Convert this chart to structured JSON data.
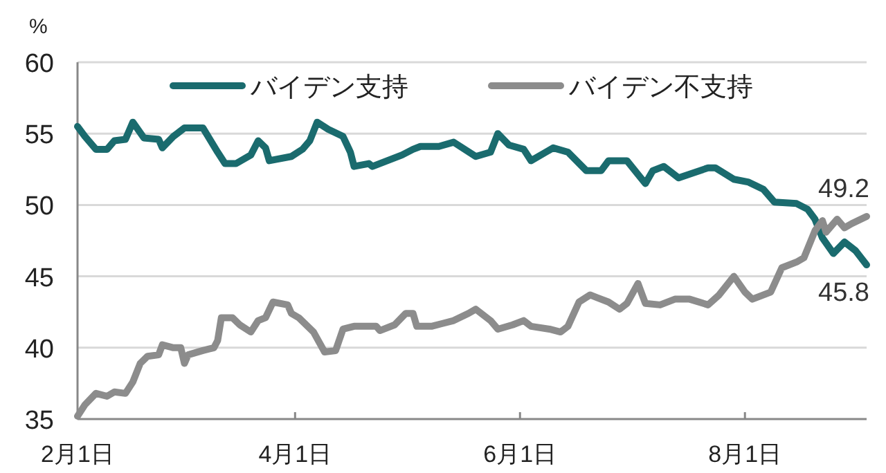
{
  "chart_data": {
    "type": "line",
    "ylabel": "%",
    "xlim": [
      "--02-01",
      "--09-03"
    ],
    "ylim": [
      35,
      60
    ],
    "xticks": [
      {
        "value": "--02-01",
        "label": "2月1日"
      },
      {
        "value": "--04-01",
        "label": "4月1日"
      },
      {
        "value": "--06-01",
        "label": "6月1日"
      },
      {
        "value": "--08-01",
        "label": "8月1日"
      }
    ],
    "yticks": [
      35,
      40,
      45,
      50,
      55,
      60
    ],
    "grid": "y",
    "legend": "top",
    "line_style": "solid",
    "marker": "none",
    "series": [
      {
        "name": "バイデン支持",
        "color": "#1a6b6e",
        "x": [
          "--02-01",
          "--02-03",
          "--02-06",
          "--02-09",
          "--02-11",
          "--02-14",
          "--02-16",
          "--02-19",
          "--02-23",
          "--02-24",
          "--02-27",
          "--03-02",
          "--03-07",
          "--03-11",
          "--03-13",
          "--03-16",
          "--03-20",
          "--03-22",
          "--03-24",
          "--03-25",
          "--03-31",
          "--04-03",
          "--04-05",
          "--04-07",
          "--04-10",
          "--04-14",
          "--04-16",
          "--04-17",
          "--04-21",
          "--04-22",
          "--04-26",
          "--04-30",
          "--05-03",
          "--05-05",
          "--05-10",
          "--05-14",
          "--05-20",
          "--05-24",
          "--05-26",
          "--05-29",
          "--06-02",
          "--06-04",
          "--06-08",
          "--06-10",
          "--06-14",
          "--06-19",
          "--06-23",
          "--06-25",
          "--06-30",
          "--07-05",
          "--07-07",
          "--07-10",
          "--07-14",
          "--07-22",
          "--07-24",
          "--07-29",
          "--08-02",
          "--08-06",
          "--08-09",
          "--08-15",
          "--08-18",
          "--08-20",
          "--08-22",
          "--08-25",
          "--08-28",
          "--08-31",
          "--09-03"
        ],
        "values": [
          55.5,
          54.8,
          53.9,
          53.9,
          54.5,
          54.6,
          55.8,
          54.7,
          54.6,
          54.0,
          54.8,
          55.4,
          55.4,
          53.7,
          52.9,
          52.9,
          53.5,
          54.5,
          54.0,
          53.1,
          53.4,
          53.9,
          54.5,
          55.8,
          55.3,
          54.8,
          53.7,
          52.7,
          52.9,
          52.7,
          53.1,
          53.5,
          53.9,
          54.1,
          54.1,
          54.4,
          53.4,
          53.7,
          55.0,
          54.2,
          53.9,
          53.1,
          53.7,
          54.0,
          53.7,
          52.4,
          52.4,
          53.1,
          53.1,
          51.5,
          52.4,
          52.7,
          51.9,
          52.6,
          52.6,
          51.8,
          51.6,
          51.1,
          50.2,
          50.1,
          49.7,
          49.0,
          47.7,
          46.6,
          47.4,
          46.8,
          45.8
        ]
      },
      {
        "name": "バイデン不支持",
        "color": "#8c8c8c",
        "x": [
          "--02-01",
          "--02-03",
          "--02-06",
          "--02-09",
          "--02-11",
          "--02-14",
          "--02-16",
          "--02-18",
          "--02-20",
          "--02-23",
          "--02-24",
          "--02-27",
          "--03-01",
          "--03-02",
          "--03-03",
          "--03-07",
          "--03-10",
          "--03-11",
          "--03-12",
          "--03-15",
          "--03-17",
          "--03-20",
          "--03-22",
          "--03-24",
          "--03-26",
          "--03-30",
          "--03-31",
          "--04-02",
          "--04-06",
          "--04-09",
          "--04-12",
          "--04-14",
          "--04-17",
          "--04-20",
          "--04-23",
          "--04-24",
          "--04-28",
          "--05-01",
          "--05-03",
          "--05-04",
          "--05-08",
          "--05-11",
          "--05-14",
          "--05-18",
          "--05-20",
          "--05-24",
          "--05-26",
          "--05-30",
          "--06-02",
          "--06-04",
          "--06-09",
          "--06-12",
          "--06-14",
          "--06-17",
          "--06-20",
          "--06-22",
          "--06-25",
          "--06-28",
          "--06-30",
          "--07-03",
          "--07-05",
          "--07-09",
          "--07-13",
          "--07-17",
          "--07-22",
          "--07-25",
          "--07-29",
          "--08-01",
          "--08-03",
          "--08-08",
          "--08-11",
          "--08-15",
          "--08-17",
          "--08-20",
          "--08-22",
          "--08-23",
          "--08-26",
          "--08-28",
          "--08-30",
          "--09-03"
        ],
        "values": [
          35.2,
          36.0,
          36.8,
          36.6,
          36.9,
          36.8,
          37.6,
          38.9,
          39.4,
          39.5,
          40.2,
          40.0,
          40.0,
          38.9,
          39.5,
          39.8,
          40.0,
          40.5,
          42.1,
          42.1,
          41.6,
          41.1,
          41.9,
          42.1,
          43.2,
          43.0,
          42.4,
          42.1,
          41.1,
          39.7,
          39.8,
          41.3,
          41.5,
          41.5,
          41.5,
          41.2,
          41.6,
          42.4,
          42.4,
          41.5,
          41.5,
          41.7,
          41.9,
          42.4,
          42.7,
          41.9,
          41.3,
          41.6,
          41.9,
          41.5,
          41.3,
          41.1,
          41.5,
          43.2,
          43.7,
          43.5,
          43.2,
          42.7,
          43.1,
          44.5,
          43.1,
          43.0,
          43.4,
          43.4,
          43.0,
          43.7,
          45.0,
          43.9,
          43.4,
          43.9,
          45.6,
          46.0,
          46.3,
          48.2,
          48.9,
          48.1,
          49.0,
          48.4,
          48.7,
          49.2
        ]
      }
    ],
    "annotations": [
      {
        "text": "49.2",
        "x": "--09-03",
        "y": 49.2
      },
      {
        "text": "45.8",
        "x": "--09-03",
        "y": 45.8
      }
    ]
  }
}
